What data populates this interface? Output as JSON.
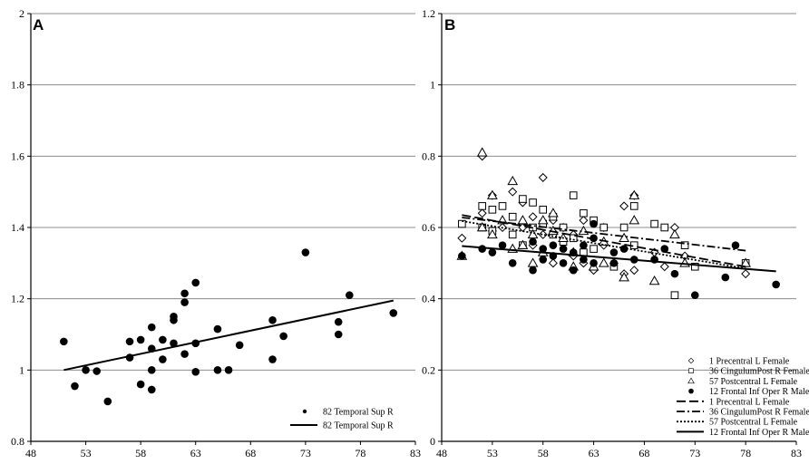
{
  "chart_data": [
    {
      "panel": "A",
      "type": "scatter",
      "xlim": [
        48,
        83
      ],
      "ylim": [
        0.8,
        2.0
      ],
      "x_ticks": [
        48,
        53,
        58,
        63,
        68,
        73,
        78,
        83
      ],
      "y_ticks": [
        0.8,
        1.0,
        1.2,
        1.4,
        1.6,
        1.8,
        2.0
      ],
      "y_tick_labels": [
        "0.8",
        "1",
        "1.2",
        "1.4",
        "1.6",
        "1.8",
        "2"
      ],
      "grid": "horizontal",
      "legend_position": "bottom-right",
      "series": [
        {
          "name": "82 Temporal Sup R",
          "marker": "filled-circle",
          "points": [
            [
              51,
              1.08
            ],
            [
              52,
              0.955
            ],
            [
              53,
              1.0
            ],
            [
              54,
              0.997
            ],
            [
              55,
              0.912
            ],
            [
              57,
              1.08
            ],
            [
              57,
              1.035
            ],
            [
              58,
              1.085
            ],
            [
              58,
              0.96
            ],
            [
              59,
              1.12
            ],
            [
              59,
              1.06
            ],
            [
              59,
              1.0
            ],
            [
              59,
              0.945
            ],
            [
              60,
              1.085
            ],
            [
              60,
              1.03
            ],
            [
              61,
              1.15
            ],
            [
              61,
              1.14
            ],
            [
              61,
              1.075
            ],
            [
              62,
              1.215
            ],
            [
              62,
              1.19
            ],
            [
              62,
              1.045
            ],
            [
              63,
              1.245
            ],
            [
              63,
              1.075
            ],
            [
              63,
              0.995
            ],
            [
              65,
              1.115
            ],
            [
              65,
              1.0
            ],
            [
              66,
              1.0
            ],
            [
              67,
              1.07
            ],
            [
              70,
              1.14
            ],
            [
              70,
              1.03
            ],
            [
              71,
              1.095
            ],
            [
              73,
              1.33
            ],
            [
              76,
              1.135
            ],
            [
              76,
              1.1
            ],
            [
              77,
              1.21
            ],
            [
              81,
              1.16
            ]
          ]
        }
      ],
      "trendlines": [
        {
          "name": "82 Temporal Sup R",
          "style": "solid",
          "x": [
            51,
            81
          ],
          "y": [
            1.0,
            1.195
          ]
        }
      ],
      "legend": [
        {
          "label": "82 Temporal Sup R",
          "kind": "marker-dot"
        },
        {
          "label": "82 Temporal Sup R",
          "kind": "solid-line"
        }
      ]
    },
    {
      "panel": "B",
      "type": "scatter",
      "xlim": [
        48,
        83
      ],
      "ylim": [
        0.0,
        1.2
      ],
      "x_ticks": [
        48,
        53,
        58,
        63,
        68,
        73,
        78,
        83
      ],
      "y_ticks": [
        0.0,
        0.2,
        0.4,
        0.6,
        0.8,
        1.0,
        1.2
      ],
      "y_tick_labels": [
        "0",
        "0.2",
        "0.4",
        "0.6",
        "0.8",
        "1",
        "1.2"
      ],
      "grid": "horizontal",
      "legend_position": "bottom-right",
      "series": [
        {
          "name": "1 Precentral L Female",
          "marker": "diamond",
          "points": [
            [
              50,
              0.57
            ],
            [
              52,
              0.8
            ],
            [
              52,
              0.64
            ],
            [
              53,
              0.69
            ],
            [
              53,
              0.59
            ],
            [
              54,
              0.6
            ],
            [
              55,
              0.7
            ],
            [
              56,
              0.67
            ],
            [
              56,
              0.6
            ],
            [
              57,
              0.63
            ],
            [
              57,
              0.55
            ],
            [
              58,
              0.74
            ],
            [
              58,
              0.58
            ],
            [
              59,
              0.62
            ],
            [
              59,
              0.5
            ],
            [
              60,
              0.6
            ],
            [
              61,
              0.58
            ],
            [
              61,
              0.52
            ],
            [
              62,
              0.62
            ],
            [
              62,
              0.5
            ],
            [
              63,
              0.48
            ],
            [
              64,
              0.6
            ],
            [
              64,
              0.55
            ],
            [
              65,
              0.5
            ],
            [
              66,
              0.66
            ],
            [
              66,
              0.47
            ],
            [
              67,
              0.69
            ],
            [
              67,
              0.48
            ],
            [
              69,
              0.53
            ],
            [
              70,
              0.49
            ],
            [
              71,
              0.6
            ],
            [
              72,
              0.52
            ],
            [
              78,
              0.47
            ]
          ]
        },
        {
          "name": "36 CingulumPost R Female",
          "marker": "square",
          "points": [
            [
              50,
              0.61
            ],
            [
              52,
              0.66
            ],
            [
              52,
              0.6
            ],
            [
              53,
              0.65
            ],
            [
              53,
              0.59
            ],
            [
              54,
              0.66
            ],
            [
              55,
              0.63
            ],
            [
              55,
              0.58
            ],
            [
              56,
              0.68
            ],
            [
              56,
              0.55
            ],
            [
              57,
              0.67
            ],
            [
              57,
              0.6
            ],
            [
              58,
              0.65
            ],
            [
              58,
              0.61
            ],
            [
              59,
              0.63
            ],
            [
              59,
              0.58
            ],
            [
              60,
              0.6
            ],
            [
              60,
              0.56
            ],
            [
              61,
              0.69
            ],
            [
              61,
              0.57
            ],
            [
              62,
              0.64
            ],
            [
              62,
              0.53
            ],
            [
              63,
              0.62
            ],
            [
              63,
              0.54
            ],
            [
              64,
              0.6
            ],
            [
              65,
              0.49
            ],
            [
              66,
              0.6
            ],
            [
              67,
              0.66
            ],
            [
              67,
              0.55
            ],
            [
              69,
              0.61
            ],
            [
              70,
              0.6
            ],
            [
              71,
              0.41
            ],
            [
              72,
              0.55
            ],
            [
              73,
              0.49
            ],
            [
              78,
              0.5
            ]
          ]
        },
        {
          "name": "57 Postcentral L Female",
          "marker": "triangle",
          "points": [
            [
              50,
              0.52
            ],
            [
              52,
              0.81
            ],
            [
              52,
              0.6
            ],
            [
              53,
              0.69
            ],
            [
              53,
              0.58
            ],
            [
              54,
              0.62
            ],
            [
              55,
              0.73
            ],
            [
              55,
              0.54
            ],
            [
              56,
              0.62
            ],
            [
              56,
              0.55
            ],
            [
              57,
              0.58
            ],
            [
              57,
              0.5
            ],
            [
              58,
              0.62
            ],
            [
              58,
              0.53
            ],
            [
              59,
              0.64
            ],
            [
              59,
              0.59
            ],
            [
              60,
              0.57
            ],
            [
              61,
              0.53
            ],
            [
              61,
              0.49
            ],
            [
              62,
              0.59
            ],
            [
              63,
              0.49
            ],
            [
              64,
              0.56
            ],
            [
              64,
              0.5
            ],
            [
              66,
              0.57
            ],
            [
              66,
              0.46
            ],
            [
              67,
              0.69
            ],
            [
              67,
              0.62
            ],
            [
              69,
              0.45
            ],
            [
              71,
              0.58
            ],
            [
              72,
              0.5
            ],
            [
              78,
              0.5
            ]
          ]
        },
        {
          "name": "12 Frontal Inf Oper R Male",
          "marker": "filled-circle",
          "points": [
            [
              50,
              0.52
            ],
            [
              52,
              0.54
            ],
            [
              53,
              0.53
            ],
            [
              54,
              0.55
            ],
            [
              55,
              0.5
            ],
            [
              57,
              0.56
            ],
            [
              57,
              0.48
            ],
            [
              58,
              0.54
            ],
            [
              58,
              0.51
            ],
            [
              59,
              0.55
            ],
            [
              59,
              0.52
            ],
            [
              60,
              0.54
            ],
            [
              60,
              0.5
            ],
            [
              61,
              0.53
            ],
            [
              61,
              0.48
            ],
            [
              62,
              0.55
            ],
            [
              62,
              0.51
            ],
            [
              63,
              0.61
            ],
            [
              63,
              0.57
            ],
            [
              63,
              0.5
            ],
            [
              65,
              0.53
            ],
            [
              65,
              0.5
            ],
            [
              66,
              0.54
            ],
            [
              67,
              0.51
            ],
            [
              69,
              0.51
            ],
            [
              70,
              0.54
            ],
            [
              71,
              0.47
            ],
            [
              73,
              0.41
            ],
            [
              76,
              0.46
            ],
            [
              77,
              0.55
            ],
            [
              81,
              0.44
            ]
          ]
        }
      ],
      "trendlines": [
        {
          "name": "1 Precentral L Female",
          "style": "dashed",
          "x": [
            50,
            78
          ],
          "y": [
            0.635,
            0.49
          ]
        },
        {
          "name": "36 CingulumPost R Female",
          "style": "dash-dot",
          "x": [
            50,
            78
          ],
          "y": [
            0.628,
            0.535
          ]
        },
        {
          "name": "57 Postcentral L Female",
          "style": "dotted",
          "x": [
            50,
            78
          ],
          "y": [
            0.618,
            0.485
          ]
        },
        {
          "name": "12 Frontal Inf Oper R Male",
          "style": "solid",
          "x": [
            50,
            81
          ],
          "y": [
            0.548,
            0.477
          ]
        }
      ],
      "legend": [
        {
          "label": "1 Precentral L Female",
          "kind": "diamond"
        },
        {
          "label": "36 CingulumPost R Female",
          "kind": "square"
        },
        {
          "label": "57 Postcentral L Female",
          "kind": "triangle"
        },
        {
          "label": "12 Frontal Inf Oper R Male",
          "kind": "filled-circle"
        },
        {
          "label": "1 Precentral L Female",
          "kind": "dashed"
        },
        {
          "label": "36 CingulumPost R Female",
          "kind": "dash-dot"
        },
        {
          "label": "57 Postcentral L Female",
          "kind": "dotted"
        },
        {
          "label": "12 Frontal Inf Oper R Male",
          "kind": "solid"
        }
      ]
    }
  ]
}
